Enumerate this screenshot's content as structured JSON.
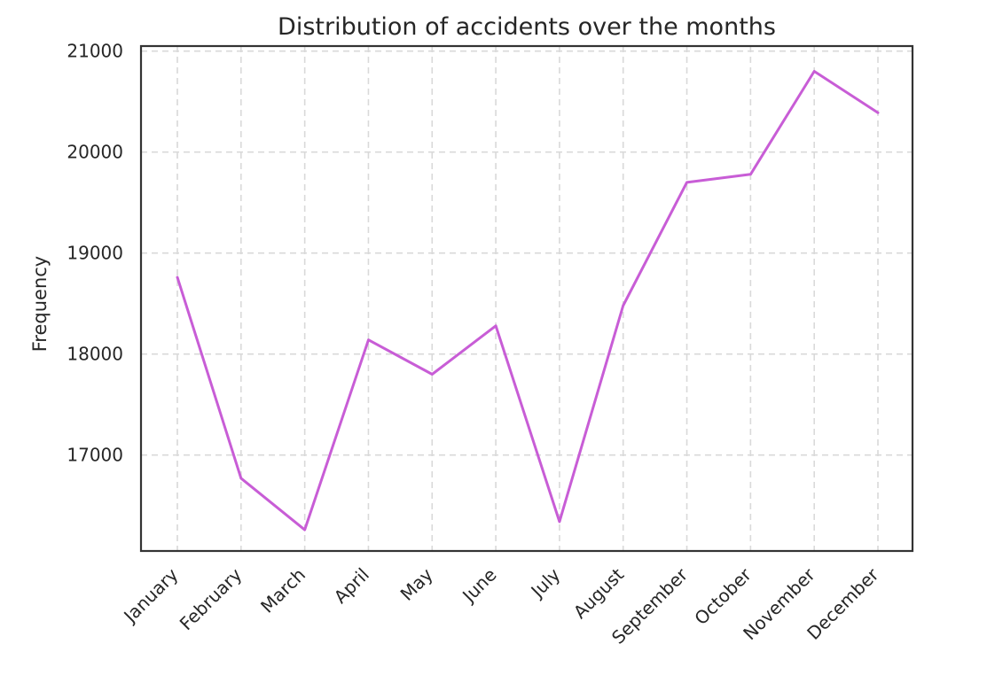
{
  "chart_data": {
    "type": "line",
    "title": "Distribution of accidents over the months",
    "xlabel": "",
    "ylabel": "Frequency",
    "categories": [
      "January",
      "February",
      "March",
      "April",
      "May",
      "June",
      "July",
      "August",
      "September",
      "October",
      "November",
      "December"
    ],
    "series": [
      {
        "values": [
          18760,
          16770,
          16260,
          18140,
          17800,
          18280,
          16340,
          18480,
          19700,
          19780,
          20800,
          20390
        ]
      }
    ],
    "yticks": [
      17000,
      18000,
      19000,
      20000,
      21000
    ],
    "ytick_labels": [
      "17000",
      "18000",
      "19000",
      "20000",
      "21000"
    ],
    "ylim": [
      16050,
      21050
    ],
    "grid": true,
    "line_color": "#c85dd6"
  }
}
